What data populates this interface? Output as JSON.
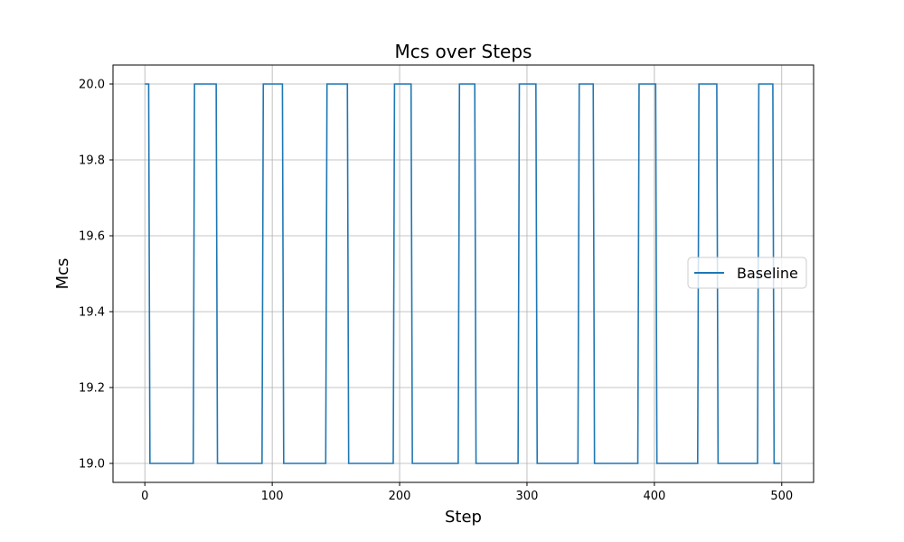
{
  "chart_data": {
    "type": "line",
    "title": "Mcs over Steps",
    "xlabel": "Step",
    "ylabel": "Mcs",
    "xlim": [
      -25,
      525
    ],
    "ylim": [
      18.95,
      20.05
    ],
    "xticks": [
      0,
      100,
      200,
      300,
      400,
      500
    ],
    "xtick_labels": [
      "0",
      "100",
      "200",
      "300",
      "400",
      "500"
    ],
    "yticks": [
      19.0,
      19.2,
      19.4,
      19.6,
      19.8,
      20.0
    ],
    "ytick_labels": [
      "19.0",
      "19.2",
      "19.4",
      "19.6",
      "19.8",
      "20.0"
    ],
    "grid": true,
    "legend_position": "center-right",
    "series": [
      {
        "name": "Baseline",
        "color": "#1f77b4",
        "step_segments": [
          {
            "x_start": 0,
            "x_end": 3,
            "value": 20.0
          },
          {
            "x_start": 4,
            "x_end": 38,
            "value": 19.0
          },
          {
            "x_start": 39,
            "x_end": 56,
            "value": 20.0
          },
          {
            "x_start": 57,
            "x_end": 92,
            "value": 19.0
          },
          {
            "x_start": 93,
            "x_end": 108,
            "value": 20.0
          },
          {
            "x_start": 109,
            "x_end": 142,
            "value": 19.0
          },
          {
            "x_start": 143,
            "x_end": 159,
            "value": 20.0
          },
          {
            "x_start": 160,
            "x_end": 195,
            "value": 19.0
          },
          {
            "x_start": 196,
            "x_end": 209,
            "value": 20.0
          },
          {
            "x_start": 210,
            "x_end": 246,
            "value": 19.0
          },
          {
            "x_start": 247,
            "x_end": 259,
            "value": 20.0
          },
          {
            "x_start": 260,
            "x_end": 293,
            "value": 19.0
          },
          {
            "x_start": 294,
            "x_end": 307,
            "value": 20.0
          },
          {
            "x_start": 308,
            "x_end": 340,
            "value": 19.0
          },
          {
            "x_start": 341,
            "x_end": 352,
            "value": 20.0
          },
          {
            "x_start": 353,
            "x_end": 387,
            "value": 19.0
          },
          {
            "x_start": 388,
            "x_end": 401,
            "value": 20.0
          },
          {
            "x_start": 402,
            "x_end": 434,
            "value": 19.0
          },
          {
            "x_start": 435,
            "x_end": 449,
            "value": 20.0
          },
          {
            "x_start": 450,
            "x_end": 481,
            "value": 19.0
          },
          {
            "x_start": 482,
            "x_end": 493,
            "value": 20.0
          },
          {
            "x_start": 494,
            "x_end": 499,
            "value": 19.0
          }
        ]
      }
    ]
  }
}
